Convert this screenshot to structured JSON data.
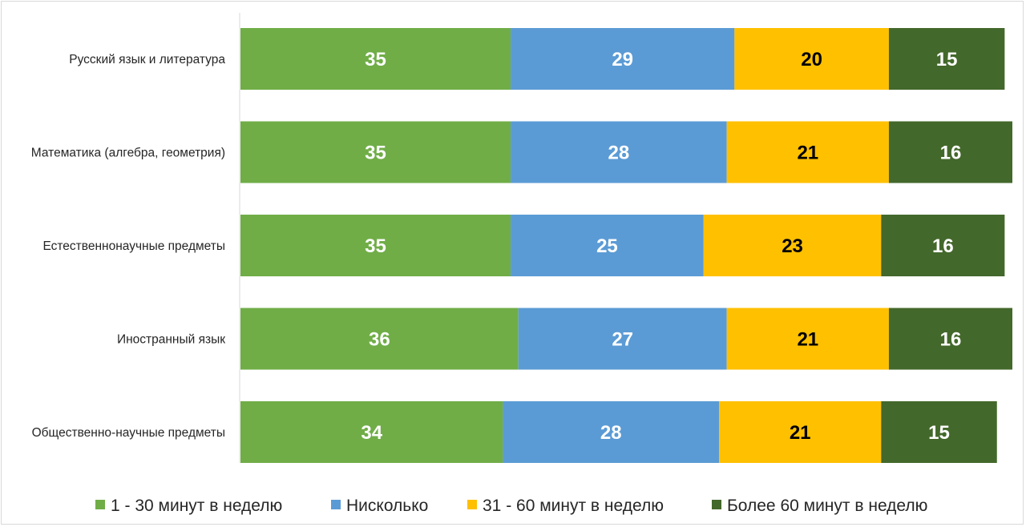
{
  "chart_data": {
    "type": "bar",
    "orientation": "horizontal",
    "stacked": true,
    "categories": [
      "Русский язык и литература",
      "Математика (алгебра, геометрия)",
      "Естественнонаучные предметы",
      "Иностранный язык",
      "Общественно-научные предметы"
    ],
    "series": [
      {
        "name": "1 - 30 минут в неделю",
        "color": "#70ad47",
        "label_color": "#ffffff",
        "values": [
          35,
          35,
          35,
          36,
          34
        ]
      },
      {
        "name": "Нисколько",
        "color": "#5b9bd5",
        "label_color": "#ffffff",
        "values": [
          29,
          28,
          25,
          27,
          28
        ]
      },
      {
        "name": "31 - 60 минут в неделю",
        "color": "#ffc000",
        "label_color": "#000000",
        "values": [
          20,
          21,
          23,
          21,
          21
        ]
      },
      {
        "name": "Более 60 минут в неделю",
        "color": "#43682b",
        "label_color": "#ffffff",
        "values": [
          15,
          16,
          16,
          16,
          15
        ]
      }
    ],
    "xlim": [
      0,
      100
    ],
    "grid": false,
    "legend_position": "bottom",
    "title": "",
    "xlabel": "",
    "ylabel": ""
  }
}
